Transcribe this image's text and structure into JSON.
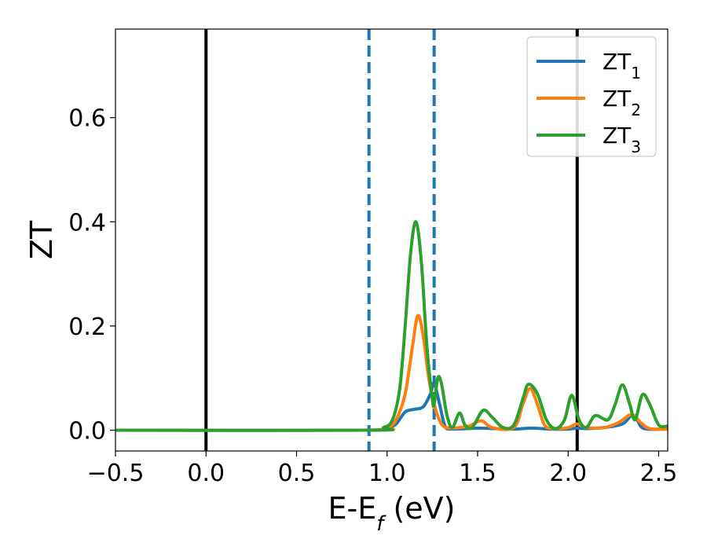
{
  "chart_data": {
    "type": "line",
    "xlabel_main": "E-E",
    "xlabel_sub": "f",
    "xlabel_unit": " (eV)",
    "ylabel": "ZT",
    "xlim": [
      -0.5,
      2.55
    ],
    "ylim": [
      -0.04,
      0.77
    ],
    "xticks": [
      -0.5,
      0.0,
      0.5,
      1.0,
      1.5,
      2.0,
      2.5
    ],
    "xtick_labels": [
      "−0.5",
      "0.0",
      "0.5",
      "1.0",
      "1.5",
      "2.0",
      "2.5"
    ],
    "yticks": [
      0.0,
      0.2,
      0.4,
      0.6
    ],
    "ytick_labels": [
      "0.0",
      "0.2",
      "0.4",
      "0.6"
    ],
    "legend_position": "top-right",
    "vlines": [
      {
        "x": 0.0,
        "color": "#000000",
        "style": "solid"
      },
      {
        "x": 2.05,
        "color": "#000000",
        "style": "solid"
      },
      {
        "x": 0.9,
        "color": "#1f77b4",
        "style": "dashed"
      },
      {
        "x": 1.26,
        "color": "#1f77b4",
        "style": "dashed"
      }
    ],
    "series": [
      {
        "legend_main": "ZT",
        "legend_sub": "1",
        "color": "#1f77b4",
        "points": [
          [
            -0.5,
            0
          ],
          [
            0.9,
            0
          ],
          [
            1.0,
            0.004
          ],
          [
            1.05,
            0.012
          ],
          [
            1.1,
            0.035
          ],
          [
            1.15,
            0.04
          ],
          [
            1.2,
            0.045
          ],
          [
            1.24,
            0.07
          ],
          [
            1.26,
            0.09
          ],
          [
            1.29,
            0.05
          ],
          [
            1.32,
            0.008
          ],
          [
            1.36,
            0.002
          ],
          [
            1.5,
            0.004
          ],
          [
            1.6,
            0.003
          ],
          [
            1.7,
            0.002
          ],
          [
            1.8,
            0.004
          ],
          [
            1.9,
            0.002
          ],
          [
            2.0,
            0.002
          ],
          [
            2.05,
            0.004
          ],
          [
            2.1,
            0.003
          ],
          [
            2.2,
            0.005
          ],
          [
            2.3,
            0.012
          ],
          [
            2.35,
            0.028
          ],
          [
            2.38,
            0.02
          ],
          [
            2.42,
            0.003
          ],
          [
            2.55,
            0.002
          ]
        ]
      },
      {
        "legend_main": "ZT",
        "legend_sub": "2",
        "color": "#ff7f0e",
        "points": [
          [
            -0.5,
            0
          ],
          [
            0.9,
            0
          ],
          [
            1.0,
            0.005
          ],
          [
            1.05,
            0.02
          ],
          [
            1.1,
            0.07
          ],
          [
            1.14,
            0.16
          ],
          [
            1.17,
            0.22
          ],
          [
            1.2,
            0.18
          ],
          [
            1.23,
            0.1
          ],
          [
            1.26,
            0.05
          ],
          [
            1.3,
            0.012
          ],
          [
            1.35,
            0.004
          ],
          [
            1.45,
            0.008
          ],
          [
            1.52,
            0.018
          ],
          [
            1.58,
            0.005
          ],
          [
            1.7,
            0.005
          ],
          [
            1.75,
            0.05
          ],
          [
            1.79,
            0.08
          ],
          [
            1.83,
            0.05
          ],
          [
            1.87,
            0.01
          ],
          [
            1.92,
            0.003
          ],
          [
            2.0,
            0.005
          ],
          [
            2.05,
            0.012
          ],
          [
            2.1,
            0.005
          ],
          [
            2.2,
            0.005
          ],
          [
            2.28,
            0.015
          ],
          [
            2.35,
            0.03
          ],
          [
            2.4,
            0.015
          ],
          [
            2.45,
            0.003
          ],
          [
            2.55,
            0.002
          ]
        ]
      },
      {
        "legend_main": "ZT",
        "legend_sub": "3",
        "color": "#2ca02c",
        "points": [
          [
            -0.5,
            0
          ],
          [
            0.9,
            0
          ],
          [
            0.98,
            0.005
          ],
          [
            1.03,
            0.02
          ],
          [
            1.07,
            0.08
          ],
          [
            1.1,
            0.2
          ],
          [
            1.13,
            0.34
          ],
          [
            1.16,
            0.4
          ],
          [
            1.19,
            0.32
          ],
          [
            1.22,
            0.16
          ],
          [
            1.25,
            0.06
          ],
          [
            1.26,
            0.05
          ],
          [
            1.28,
            0.1
          ],
          [
            1.3,
            0.09
          ],
          [
            1.33,
            0.03
          ],
          [
            1.36,
            0.005
          ],
          [
            1.4,
            0.033
          ],
          [
            1.43,
            0.01
          ],
          [
            1.47,
            0.005
          ],
          [
            1.53,
            0.038
          ],
          [
            1.58,
            0.025
          ],
          [
            1.64,
            0.005
          ],
          [
            1.7,
            0.01
          ],
          [
            1.75,
            0.06
          ],
          [
            1.78,
            0.088
          ],
          [
            1.83,
            0.07
          ],
          [
            1.88,
            0.02
          ],
          [
            1.93,
            0.003
          ],
          [
            1.98,
            0.02
          ],
          [
            2.02,
            0.067
          ],
          [
            2.06,
            0.02
          ],
          [
            2.1,
            0.005
          ],
          [
            2.15,
            0.028
          ],
          [
            2.22,
            0.02
          ],
          [
            2.26,
            0.05
          ],
          [
            2.3,
            0.087
          ],
          [
            2.34,
            0.05
          ],
          [
            2.37,
            0.02
          ],
          [
            2.41,
            0.068
          ],
          [
            2.45,
            0.05
          ],
          [
            2.5,
            0.01
          ],
          [
            2.55,
            0.008
          ]
        ]
      }
    ]
  }
}
